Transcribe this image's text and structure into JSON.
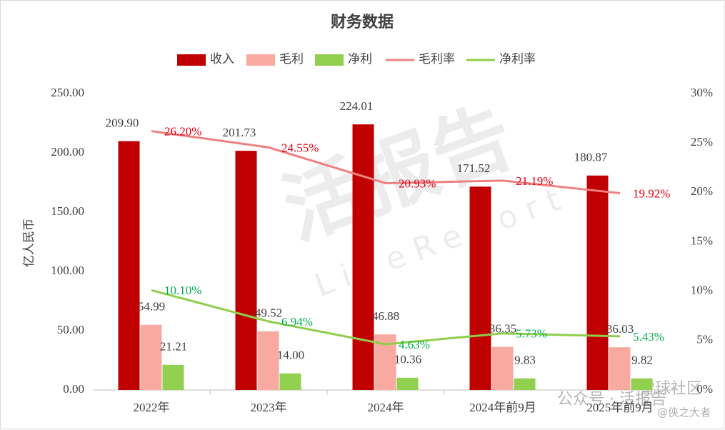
{
  "chart_data": {
    "type": "bar",
    "title": "财务数据",
    "y_label": "亿人民币",
    "categories": [
      "2022年",
      "2023年",
      "2024年",
      "2024年前9月",
      "2025年前9月"
    ],
    "series": [
      {
        "name": "收入",
        "type": "bar",
        "color": "#c00000",
        "values": [
          209.9,
          201.73,
          224.01,
          171.52,
          180.87
        ],
        "value_labels": [
          "209.90",
          "201.73",
          "224.01",
          "171.52",
          "180.87"
        ]
      },
      {
        "name": "毛利",
        "type": "bar",
        "color": "#f8a9a0",
        "values": [
          54.99,
          49.52,
          46.88,
          36.35,
          36.03
        ],
        "value_labels": [
          "54.99",
          "49.52",
          "46.88",
          "36.35",
          "36.03"
        ]
      },
      {
        "name": "净利",
        "type": "bar",
        "color": "#92d050",
        "values": [
          21.21,
          14.0,
          10.36,
          9.83,
          9.82
        ],
        "value_labels": [
          "21.21",
          "14.00",
          "10.36",
          "9.83",
          "9.82"
        ]
      },
      {
        "name": "毛利率",
        "type": "line",
        "axis": "y2",
        "color": "#f08080",
        "label_color": "#e00010",
        "values": [
          26.2,
          24.55,
          20.93,
          21.19,
          19.92
        ],
        "value_labels": [
          "26.20%",
          "24.55%",
          "20.93%",
          "21.19%",
          "19.92%"
        ]
      },
      {
        "name": "净利率",
        "type": "line",
        "axis": "y2",
        "color": "#8fce4c",
        "label_color": "#00b050",
        "values": [
          10.1,
          6.94,
          4.63,
          5.73,
          5.43
        ],
        "value_labels": [
          "10.10%",
          "6.94%",
          "4.63%",
          "5.73%",
          "5.43%"
        ]
      }
    ],
    "ylim": [
      0,
      250
    ],
    "yticks": [
      {
        "value": 0,
        "label": "0.00"
      },
      {
        "value": 50,
        "label": "50.00"
      },
      {
        "value": 100,
        "label": "100.00"
      },
      {
        "value": 150,
        "label": "150.00"
      },
      {
        "value": 200,
        "label": "200.00"
      },
      {
        "value": 250,
        "label": "250.00"
      }
    ],
    "y2lim": [
      0,
      30
    ],
    "y2ticks": [
      {
        "value": 0,
        "label": "0%"
      },
      {
        "value": 5,
        "label": "5%"
      },
      {
        "value": 10,
        "label": "10%"
      },
      {
        "value": 15,
        "label": "15%"
      },
      {
        "value": 20,
        "label": "20%"
      },
      {
        "value": 25,
        "label": "25%"
      },
      {
        "value": 30,
        "label": "30%"
      }
    ],
    "grid": false,
    "legend": "top",
    "watermarks": [
      "活报告",
      "LiveReport",
      "公众号 · 活报告",
      "雪球社区",
      "@侠之大者"
    ]
  }
}
